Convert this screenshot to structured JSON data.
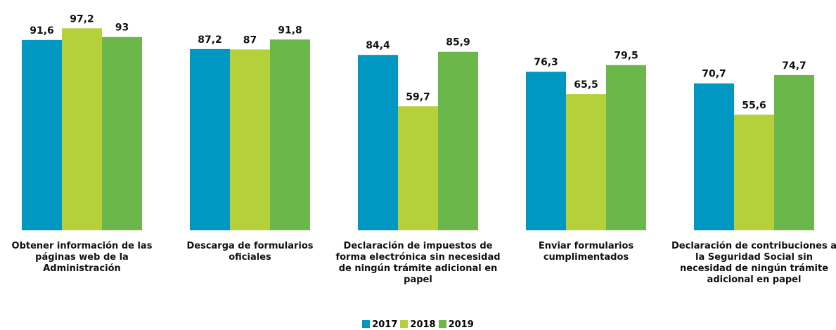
{
  "chart_data": {
    "type": "bar",
    "categories": [
      "Obtener información de las páginas web de la Administración",
      "Descarga de formularios oficiales",
      "Declaración de impuestos de forma electrónica sin necesidad de ningún trámite adicional en papel",
      "Enviar formularios cumplimentados",
      "Declaración de contribuciones a la Seguridad Social sin necesidad de ningún trámite adicional en papel"
    ],
    "series": [
      {
        "name": "2017",
        "color": "#0098c3",
        "values": [
          91.6,
          87.2,
          84.4,
          76.3,
          70.7
        ],
        "value_labels": [
          "91,6",
          "87,2",
          "84,4",
          "76,3",
          "70,7"
        ]
      },
      {
        "name": "2018",
        "color": "#b4d03a",
        "values": [
          97.2,
          87,
          59.7,
          65.5,
          55.6
        ],
        "value_labels": [
          "97,2",
          "87",
          "59,7",
          "65,5",
          "55,6"
        ]
      },
      {
        "name": "2019",
        "color": "#6bb74a",
        "values": [
          93,
          91.8,
          85.9,
          79.5,
          74.7
        ],
        "value_labels": [
          "93",
          "91,8",
          "85,9",
          "79,5",
          "74,7"
        ]
      }
    ],
    "ylim": [
      0,
      100
    ],
    "legend": "bottom"
  }
}
